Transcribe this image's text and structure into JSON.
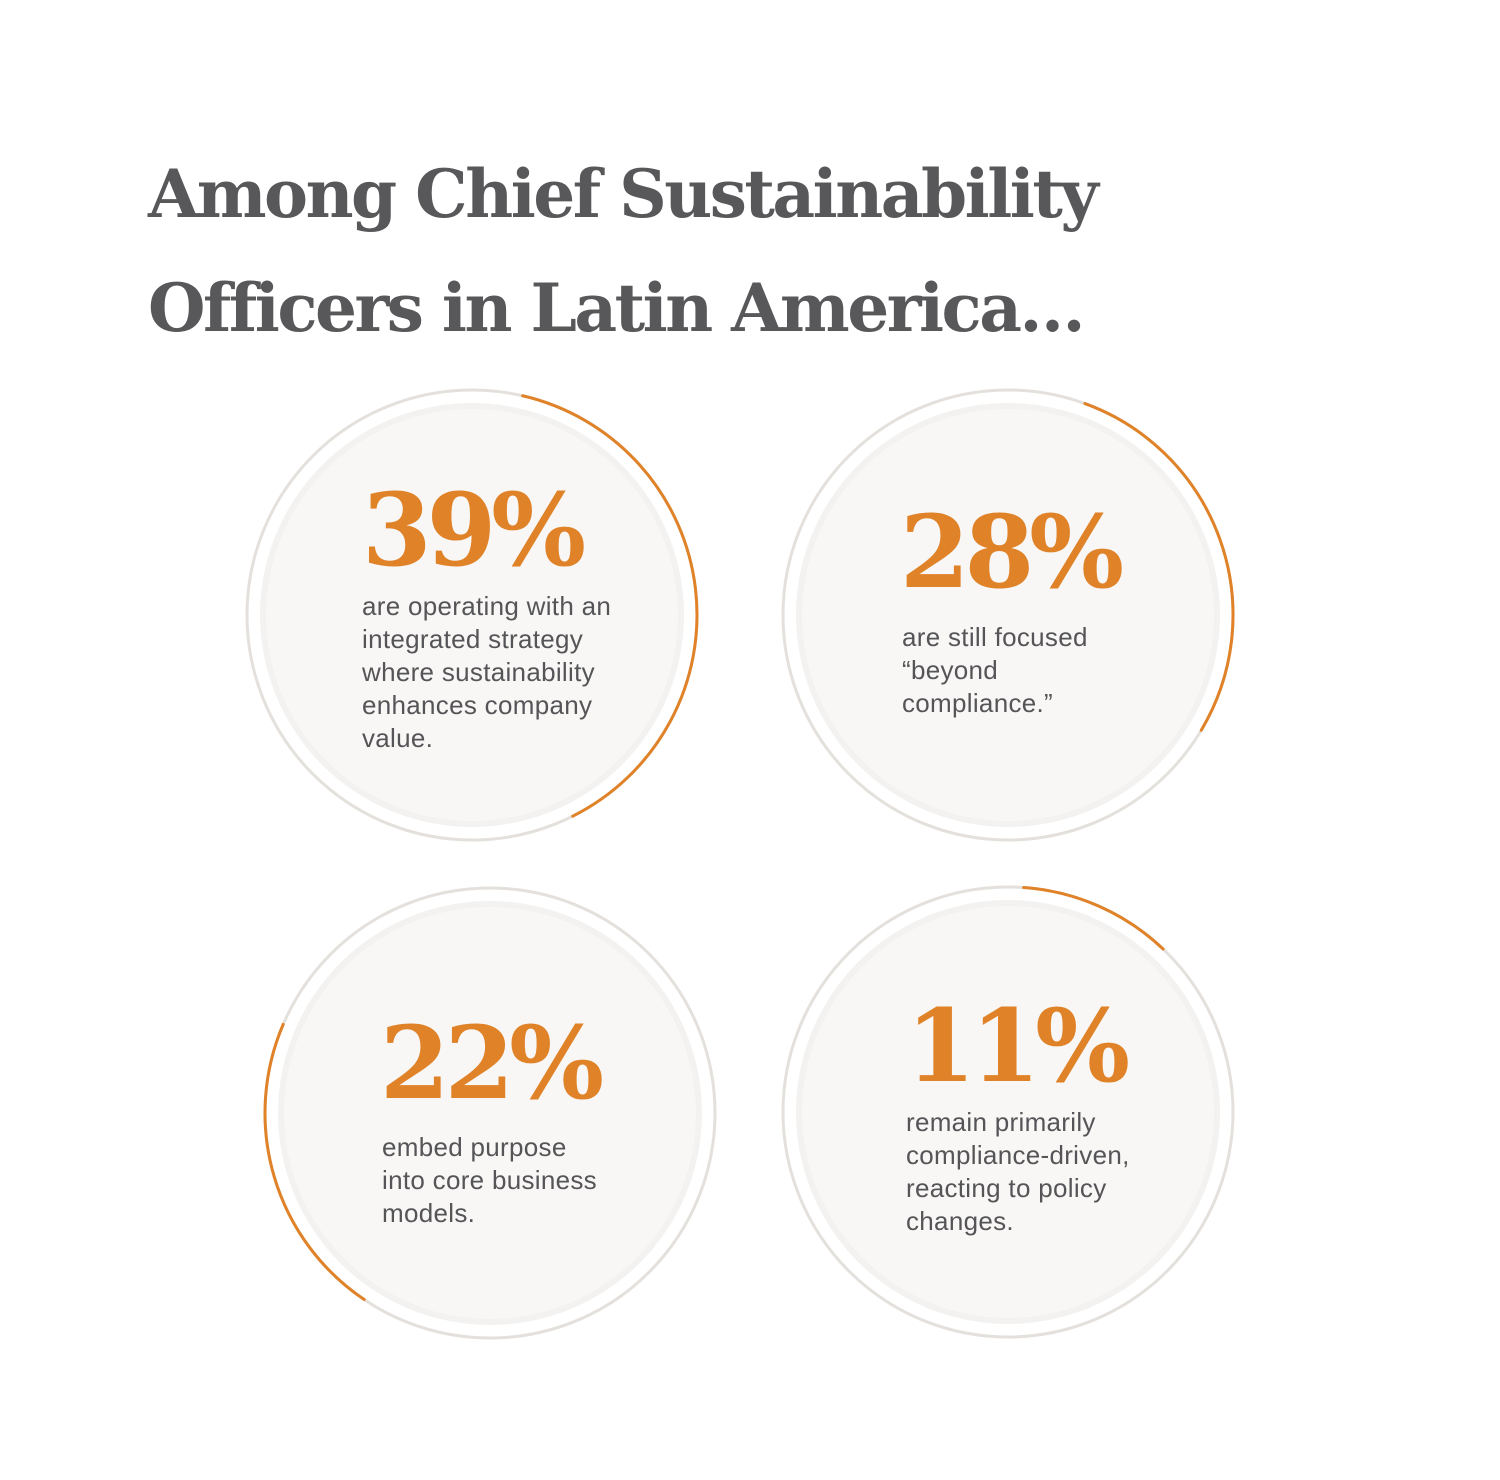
{
  "title": {
    "line1": "Among Chief Sustainability",
    "line2": "Officers in Latin America…"
  },
  "colors": {
    "accent": "#e08228",
    "title": "#58585a",
    "body_text": "#555558",
    "ring": "#e4e1dd",
    "circle_fill": "#f8f7f6"
  },
  "chart_data": {
    "type": "pie",
    "title": "Among Chief Sustainability Officers in Latin America…",
    "categories": [
      "are operating with an integrated strategy where sustainability enhances company value.",
      "are still focused “beyond compliance.”",
      "embed purpose into core business models.",
      "remain primarily compliance-driven, reacting to policy changes."
    ],
    "values": [
      39,
      28,
      22,
      11
    ],
    "unit": "%"
  },
  "stats": [
    {
      "percent": "39%",
      "lines": [
        "are operating with an",
        "integrated strategy",
        "where sustainability",
        "enhances company",
        "value."
      ]
    },
    {
      "percent": "28%",
      "lines": [
        "are still focused",
        "“beyond",
        "compliance.”"
      ]
    },
    {
      "percent": "22%",
      "lines": [
        "embed purpose",
        "into core business",
        "models."
      ]
    },
    {
      "percent": "11%",
      "lines": [
        "remain primarily",
        "compliance-driven,",
        "reacting to policy",
        "changes."
      ]
    }
  ]
}
